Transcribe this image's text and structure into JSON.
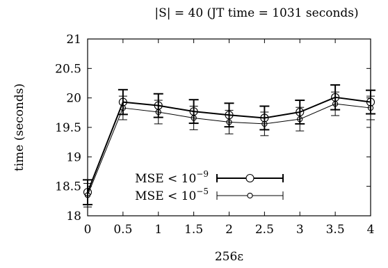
{
  "chart_data": {
    "type": "line",
    "title": "|S| = 40 (JT time = 1031 seconds)",
    "xlabel": "256ε",
    "ylabel": "time (seconds)",
    "xlim": [
      0,
      4
    ],
    "ylim": [
      18,
      21
    ],
    "x_ticks": [
      "0",
      "0.5",
      "1",
      "1.5",
      "2",
      "2.5",
      "3",
      "3.5",
      "4"
    ],
    "y_ticks": [
      "18",
      "18.5",
      "19",
      "19.5",
      "20",
      "20.5",
      "21"
    ],
    "grid": false,
    "legend_position": "bottom-center",
    "x": [
      0,
      0.5,
      1,
      1.5,
      2,
      2.5,
      3,
      3.5,
      4
    ],
    "series": [
      {
        "name": "MSE < 10^-9",
        "name_base": "MSE < 10",
        "name_exp": "−9",
        "marker": "large-circle",
        "line_width": "thick",
        "y": [
          18.4,
          19.93,
          19.87,
          19.77,
          19.71,
          19.66,
          19.76,
          20.01,
          19.93
        ],
        "err": [
          0.21,
          0.21,
          0.2,
          0.2,
          0.2,
          0.2,
          0.2,
          0.21,
          0.2
        ]
      },
      {
        "name": "MSE < 10^-5",
        "name_base": "MSE < 10",
        "name_exp": "−5",
        "marker": "small-circle",
        "line_width": "thin",
        "y": [
          18.35,
          19.83,
          19.76,
          19.66,
          19.59,
          19.56,
          19.64,
          19.9,
          19.83
        ],
        "err": [
          0.2,
          0.2,
          0.2,
          0.2,
          0.2,
          0.2,
          0.2,
          0.2,
          0.2
        ]
      }
    ]
  }
}
